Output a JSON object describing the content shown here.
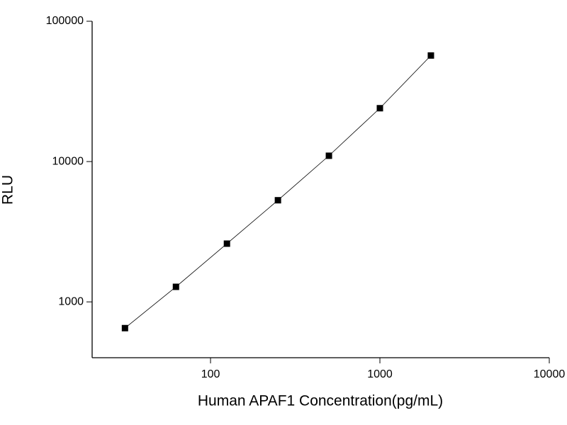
{
  "chart_data": {
    "type": "scatter-line",
    "x_label": "Human APAF1 Concentration(pg/mL)",
    "y_label": "RLU",
    "x": [
      31.25,
      62.5,
      125,
      250,
      500,
      1000,
      2000
    ],
    "values": [
      650,
      1280,
      2600,
      5300,
      11000,
      24000,
      57000
    ],
    "color": "#000000",
    "xlim": [
      20,
      10000
    ],
    "xticks": [
      100,
      1000,
      10000
    ],
    "ylim": [
      400,
      100000
    ],
    "yticks": [
      1000,
      10000,
      100000
    ],
    "x_log": true,
    "y_log": true,
    "grid": false
  }
}
